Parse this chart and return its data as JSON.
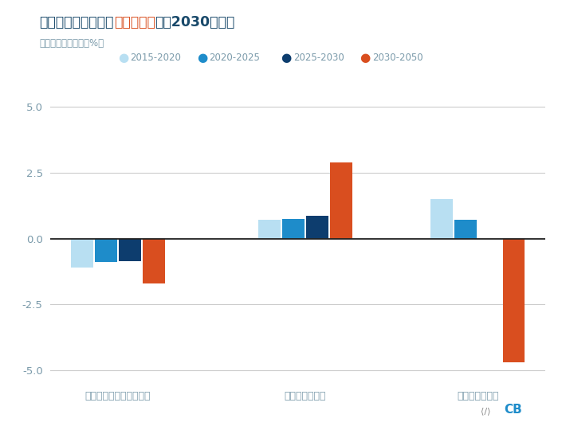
{
  "title_part1": "提议的中期目标将把",
  "title_bold_red": "繁重的任务",
  "title_part2": "留给2030年之后",
  "subtitle": "年变化率，百分比（%）",
  "categories": [
    "煤炭在能源结构中的占比",
    "非化石能源占比",
    "二氧化碳排放量"
  ],
  "series_names": [
    "2015-2020",
    "2020-2025",
    "2025-2030",
    "2030-2050"
  ],
  "series": {
    "2015-2020": [
      -1.1,
      0.7,
      1.5
    ],
    "2020-2025": [
      -0.9,
      0.75,
      0.7
    ],
    "2025-2030": [
      -0.85,
      0.85,
      0.0
    ],
    "2030-2050": [
      -1.7,
      2.9,
      -4.7
    ]
  },
  "colors": {
    "2015-2020": "#b8dff2",
    "2020-2025": "#1e8cca",
    "2025-2030": "#0d3d6e",
    "2030-2050": "#d94e1f"
  },
  "ylim": [
    -5.5,
    5.5
  ],
  "yticks": [
    -5.0,
    -2.5,
    0.0,
    2.5,
    5.0
  ],
  "background_color": "#ffffff",
  "grid_color": "#cccccc",
  "axis_label_color": "#7a9aaa",
  "title_color": "#1a4a6b",
  "title_bold_color": "#d94e1f",
  "bar_width": 0.16,
  "group_centers": [
    0.45,
    1.7,
    2.85
  ]
}
